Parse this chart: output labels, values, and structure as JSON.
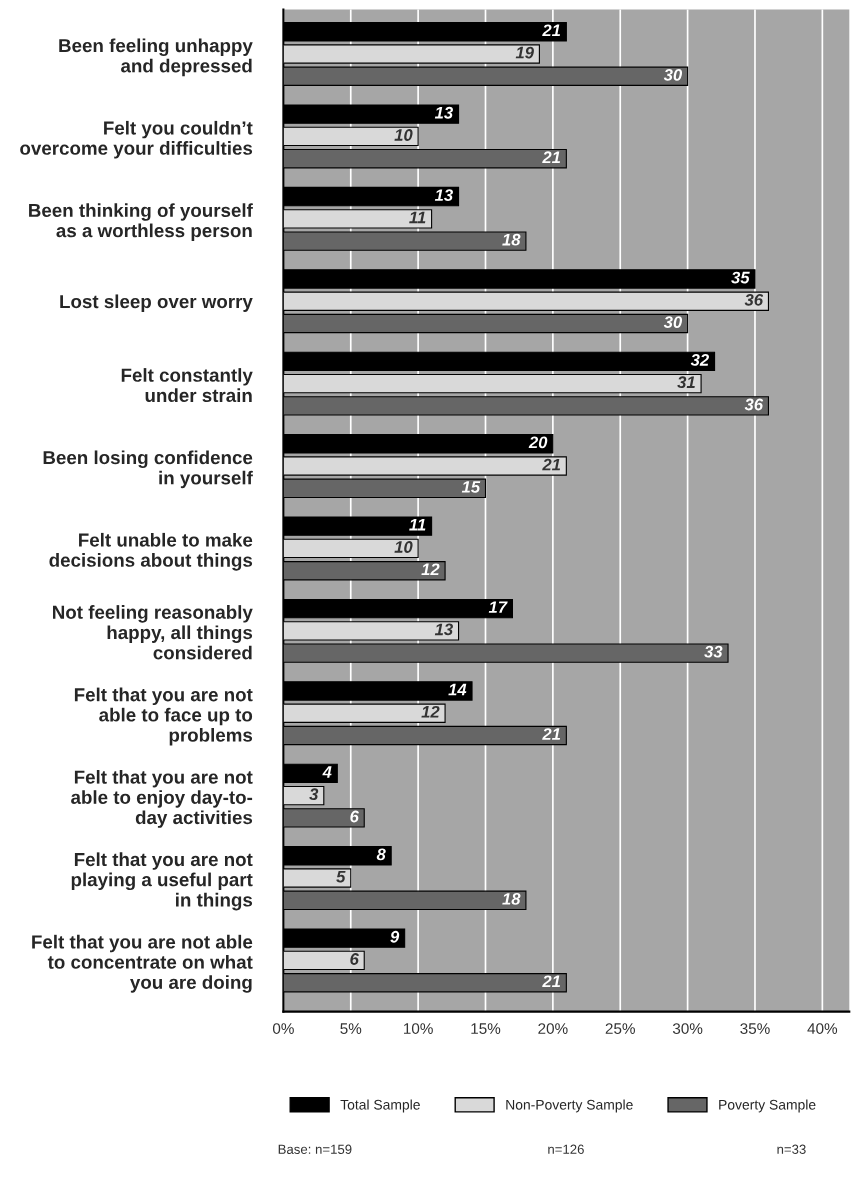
{
  "chart_data": {
    "type": "bar",
    "orientation": "horizontal",
    "categories": [
      "Been feeling unhappy\nand depressed",
      "Felt you couldn’t\novercome your difficulties",
      "Been thinking of yourself\nas a worthless person",
      "Lost sleep over worry",
      "Felt constantly\nunder strain",
      "Been losing confidence\nin yourself",
      "Felt unable to make\ndecisions about things",
      "Not feeling reasonably\nhappy, all things\nconsidered",
      "Felt that you are not\nable to face up to\nproblems",
      "Felt that you are not\nable to enjoy day-to-\nday activities",
      "Felt that you are not\nplaying a useful part\nin things",
      "Felt that you are not able\nto concentrate on what\nyou are doing"
    ],
    "series": [
      {
        "name": "Total Sample",
        "color": "#000000",
        "values": [
          21,
          13,
          13,
          35,
          32,
          20,
          11,
          17,
          14,
          4,
          8,
          9
        ]
      },
      {
        "name": "Non-Poverty Sample",
        "color": "#d9d9d9",
        "values": [
          19,
          10,
          11,
          36,
          31,
          21,
          10,
          13,
          12,
          3,
          5,
          6
        ]
      },
      {
        "name": "Poverty Sample",
        "color": "#666666",
        "values": [
          30,
          21,
          18,
          30,
          36,
          15,
          12,
          33,
          21,
          6,
          18,
          21
        ]
      }
    ],
    "xlim": [
      0,
      42
    ],
    "xticks": [
      {
        "value": 0,
        "label": "0%"
      },
      {
        "value": 5,
        "label": "5%"
      },
      {
        "value": 10,
        "label": "10%"
      },
      {
        "value": 15,
        "label": "15%"
      },
      {
        "value": 20,
        "label": "20%"
      },
      {
        "value": 25,
        "label": "25%"
      },
      {
        "value": 30,
        "label": "30%"
      },
      {
        "value": 35,
        "label": "35%"
      },
      {
        "value": 40,
        "label": "40%"
      }
    ],
    "grid": "x",
    "legend": "bottom",
    "data_labels": true,
    "annotations": [
      "Base: n=159",
      "n=126",
      "n=33"
    ]
  }
}
